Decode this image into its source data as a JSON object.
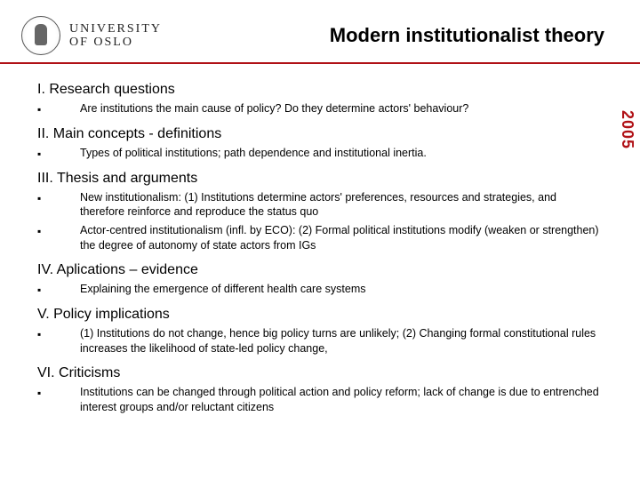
{
  "colors": {
    "accent": "#b01116",
    "text": "#000000",
    "background": "#ffffff"
  },
  "header": {
    "university_line1": "UNIVERSITY",
    "university_line2": "OF OSLO",
    "title": "Modern  institutionalist theory"
  },
  "year_label": "2005",
  "sections": {
    "s1": {
      "heading": "I. Research questions",
      "items": [
        "Are institutions the main cause of policy? Do they determine actors' behaviour?"
      ]
    },
    "s2": {
      "heading": "II. Main concepts - definitions",
      "items": [
        "Types of political institutions; path dependence and institutional inertia."
      ]
    },
    "s3": {
      "heading": "III. Thesis and arguments",
      "items": [
        "New institutionalism: (1) Institutions determine actors' preferences, resources and strategies, and therefore reinforce and reproduce the status quo",
        "Actor-centred institutionalism (infl. by ECO): (2) Formal political institutions modify (weaken or strengthen) the degree of autonomy of state actors from IGs"
      ]
    },
    "s4": {
      "heading": "IV. Aplications – evidence",
      "items": [
        "Explaining the emergence of different health care systems"
      ]
    },
    "s5": {
      "heading": "V. Policy implications",
      "items": [
        "(1) Institutions do not change, hence big policy turns are unlikely; (2) Changing formal constitutional rules increases the likelihood of state-led policy change,"
      ]
    },
    "s6": {
      "heading": "VI. Criticisms",
      "items": [
        "Institutions can be changed through political action and policy reform; lack of change is due to entrenched interest groups and/or reluctant citizens"
      ]
    }
  }
}
